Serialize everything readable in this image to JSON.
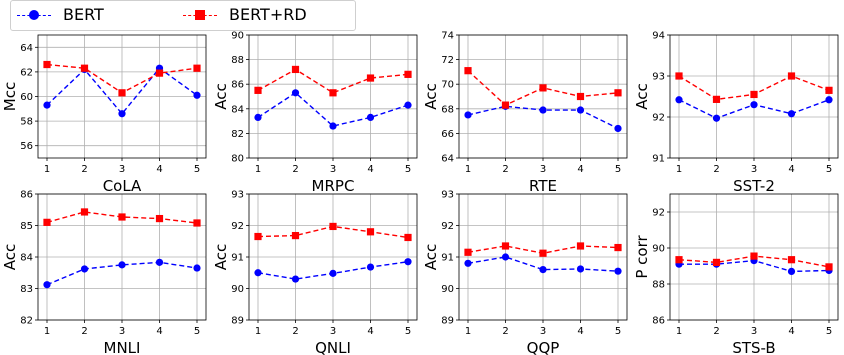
{
  "legend": {
    "series1": {
      "label": "BERT",
      "color": "#0000ff"
    },
    "series2": {
      "label": "BERT+RD",
      "color": "#ff0000"
    }
  },
  "chart_data": [
    {
      "type": "line",
      "title": "CoLA",
      "ylabel": "Mcc",
      "x": [
        1,
        2,
        3,
        4,
        5
      ],
      "ylim": [
        55,
        65
      ],
      "yticks": [
        56,
        58,
        60,
        62,
        64
      ],
      "grid": true,
      "series": [
        {
          "name": "BERT",
          "values": [
            59.3,
            62.2,
            58.6,
            62.3,
            60.1
          ]
        },
        {
          "name": "BERT+RD",
          "values": [
            62.6,
            62.3,
            60.3,
            61.9,
            62.3
          ]
        }
      ]
    },
    {
      "type": "line",
      "title": "MRPC",
      "ylabel": "Acc",
      "x": [
        1,
        2,
        3,
        4,
        5
      ],
      "ylim": [
        80,
        90
      ],
      "yticks": [
        80,
        82,
        84,
        86,
        88,
        90
      ],
      "grid": true,
      "series": [
        {
          "name": "BERT",
          "values": [
            83.3,
            85.3,
            82.6,
            83.3,
            84.3
          ]
        },
        {
          "name": "BERT+RD",
          "values": [
            85.5,
            87.2,
            85.3,
            86.5,
            86.8
          ]
        }
      ]
    },
    {
      "type": "line",
      "title": "RTE",
      "ylabel": "Acc",
      "x": [
        1,
        2,
        3,
        4,
        5
      ],
      "ylim": [
        64,
        74
      ],
      "yticks": [
        64,
        66,
        68,
        70,
        72,
        74
      ],
      "grid": true,
      "series": [
        {
          "name": "BERT",
          "values": [
            67.5,
            68.2,
            67.9,
            67.9,
            66.4
          ]
        },
        {
          "name": "BERT+RD",
          "values": [
            71.1,
            68.3,
            69.7,
            69.0,
            69.3
          ]
        }
      ]
    },
    {
      "type": "line",
      "title": "SST-2",
      "ylabel": "Acc",
      "x": [
        1,
        2,
        3,
        4,
        5
      ],
      "ylim": [
        91,
        94
      ],
      "yticks": [
        91,
        92,
        93,
        94
      ],
      "grid": true,
      "series": [
        {
          "name": "BERT",
          "values": [
            92.42,
            91.97,
            92.3,
            92.08,
            92.42
          ]
        },
        {
          "name": "BERT+RD",
          "values": [
            93.0,
            92.43,
            92.55,
            93.0,
            92.65
          ]
        }
      ]
    },
    {
      "type": "line",
      "title": "MNLI",
      "ylabel": "Acc",
      "x": [
        1,
        2,
        3,
        4,
        5
      ],
      "ylim": [
        82,
        86
      ],
      "yticks": [
        82,
        83,
        84,
        85,
        86
      ],
      "grid": true,
      "series": [
        {
          "name": "BERT",
          "values": [
            83.12,
            83.62,
            83.75,
            83.83,
            83.65
          ]
        },
        {
          "name": "BERT+RD",
          "values": [
            85.1,
            85.43,
            85.27,
            85.22,
            85.08
          ]
        }
      ]
    },
    {
      "type": "line",
      "title": "QNLI",
      "ylabel": "Acc",
      "x": [
        1,
        2,
        3,
        4,
        5
      ],
      "ylim": [
        89,
        93
      ],
      "yticks": [
        89,
        90,
        91,
        92,
        93
      ],
      "grid": true,
      "series": [
        {
          "name": "BERT",
          "values": [
            90.5,
            90.3,
            90.48,
            90.68,
            90.85
          ]
        },
        {
          "name": "BERT+RD",
          "values": [
            91.65,
            91.68,
            91.97,
            91.8,
            91.62
          ]
        }
      ]
    },
    {
      "type": "line",
      "title": "QQP",
      "ylabel": "Acc",
      "x": [
        1,
        2,
        3,
        4,
        5
      ],
      "ylim": [
        89,
        93
      ],
      "yticks": [
        89,
        90,
        91,
        92,
        93
      ],
      "grid": true,
      "series": [
        {
          "name": "BERT",
          "values": [
            90.8,
            91.0,
            90.6,
            90.62,
            90.55
          ]
        },
        {
          "name": "BERT+RD",
          "values": [
            91.15,
            91.35,
            91.12,
            91.35,
            91.3
          ]
        }
      ]
    },
    {
      "type": "line",
      "title": "STS-B",
      "ylabel": "P corr",
      "x": [
        1,
        2,
        3,
        4,
        5
      ],
      "ylim": [
        86,
        93
      ],
      "yticks": [
        86,
        88,
        90,
        92
      ],
      "grid": true,
      "series": [
        {
          "name": "BERT",
          "values": [
            89.1,
            89.1,
            89.3,
            88.7,
            88.75
          ]
        },
        {
          "name": "BERT+RD",
          "values": [
            89.35,
            89.2,
            89.55,
            89.35,
            88.95
          ]
        }
      ]
    }
  ]
}
